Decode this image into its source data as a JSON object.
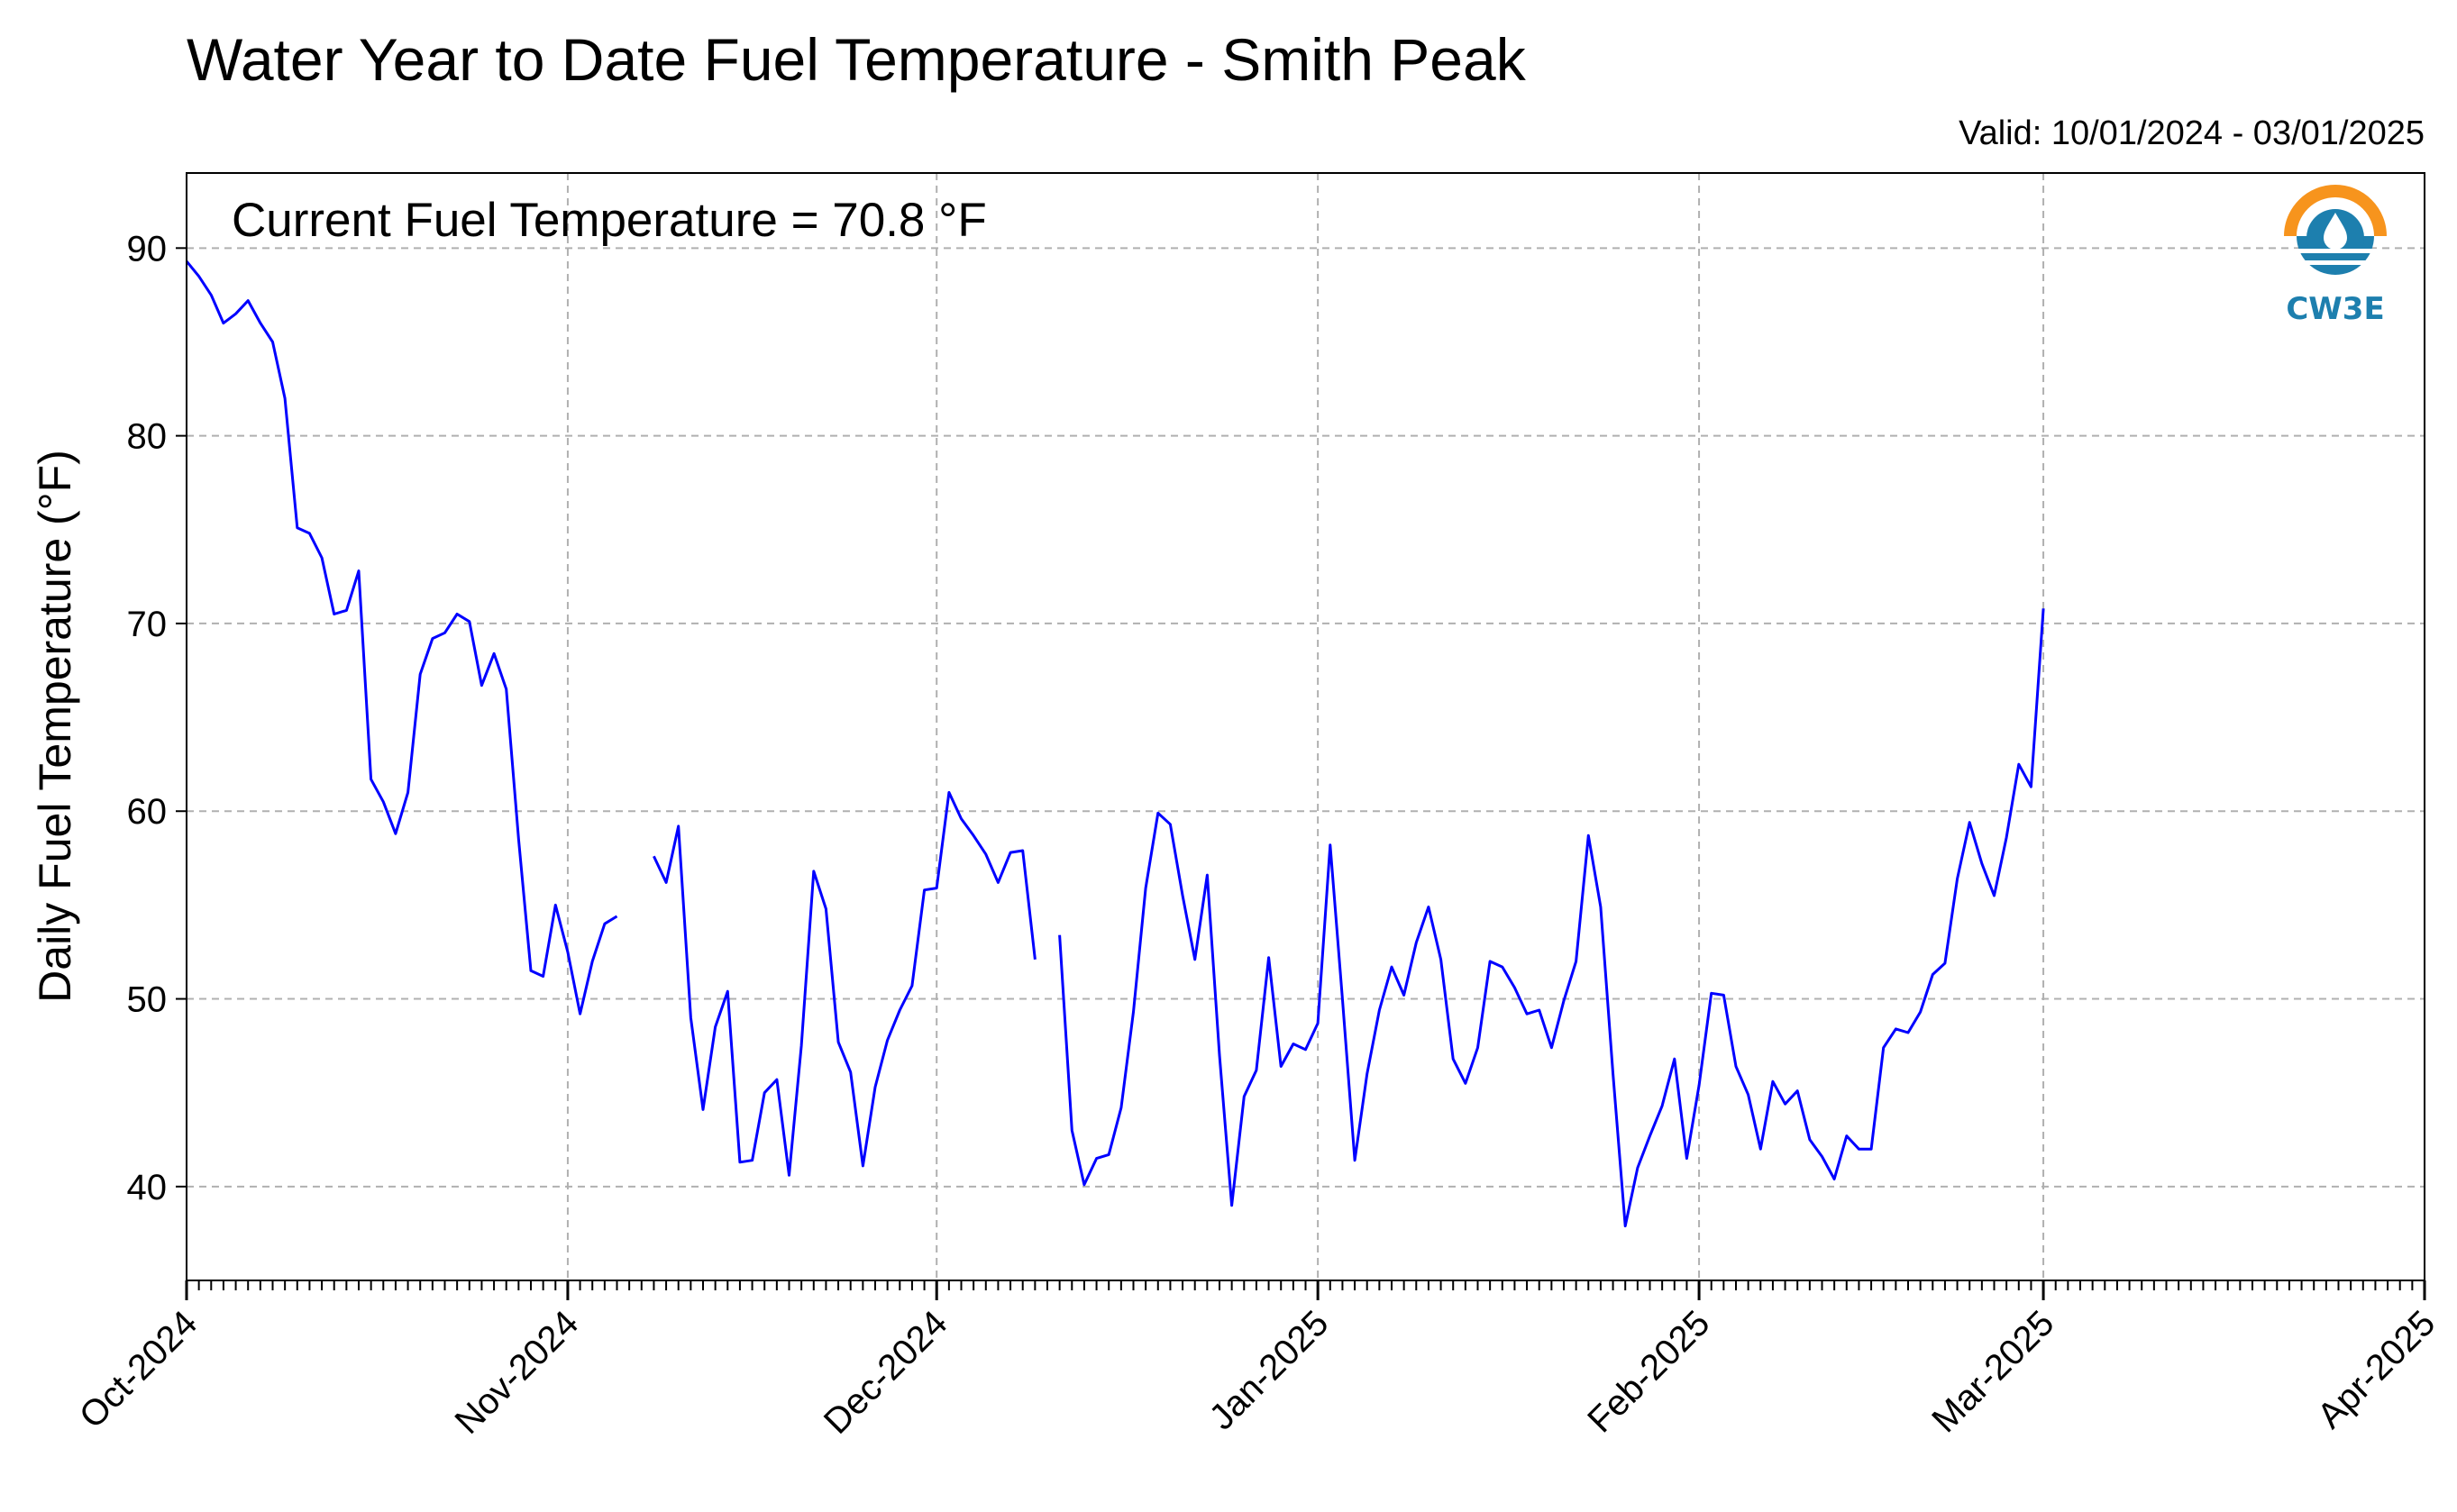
{
  "chart_data": {
    "type": "line",
    "title": "Water Year to Date Fuel Temperature - Smith Peak",
    "valid_text": "Valid: 10/01/2024 - 03/01/2025",
    "annotation": "Current Fuel Temperature = 70.8 °F",
    "ylabel": "Daily Fuel Temperature (°F)",
    "xlabel": "",
    "ylim": [
      35,
      94
    ],
    "yticks": [
      40,
      50,
      60,
      70,
      80,
      90
    ],
    "x_range": [
      "2024-10-01",
      "2025-04-01"
    ],
    "xticks": [
      {
        "date": "2024-10-01",
        "label": "Oct-2024"
      },
      {
        "date": "2024-11-01",
        "label": "Nov-2024"
      },
      {
        "date": "2024-12-01",
        "label": "Dec-2024"
      },
      {
        "date": "2025-01-01",
        "label": "Jan-2025"
      },
      {
        "date": "2025-02-01",
        "label": "Feb-2025"
      },
      {
        "date": "2025-03-01",
        "label": "Mar-2025"
      },
      {
        "date": "2025-04-01",
        "label": "Apr-2025"
      }
    ],
    "grid": true,
    "line_color": "#0000ff",
    "start_date": "2024-10-01",
    "values": [
      89.3,
      88.5,
      87.5,
      86.0,
      86.5,
      87.2,
      86.0,
      85.0,
      82.0,
      75.1,
      74.8,
      73.5,
      70.5,
      70.7,
      72.8,
      61.7,
      60.5,
      58.8,
      61.0,
      67.3,
      69.2,
      69.5,
      70.5,
      70.1,
      66.7,
      68.4,
      66.5,
      58.5,
      51.5,
      51.2,
      55.0,
      52.5,
      49.2,
      52.0,
      54.0,
      54.4,
      null,
      null,
      57.6,
      56.2,
      59.2,
      49.0,
      44.1,
      48.5,
      50.4,
      41.3,
      41.4,
      45.0,
      45.7,
      40.6,
      47.5,
      56.8,
      54.8,
      47.7,
      46.1,
      41.1,
      45.3,
      47.8,
      49.4,
      50.7,
      55.8,
      55.9,
      61.0,
      59.6,
      58.7,
      57.7,
      56.2,
      57.8,
      57.9,
      52.1,
      null,
      53.4,
      43.0,
      40.1,
      41.5,
      41.7,
      44.2,
      49.3,
      55.9,
      59.9,
      59.3,
      55.5,
      52.1,
      56.6,
      47.0,
      39.0,
      44.8,
      46.2,
      52.2,
      46.4,
      47.6,
      47.3,
      48.7,
      58.2,
      50.0,
      41.4,
      46.0,
      49.4,
      51.7,
      50.2,
      53.0,
      54.9,
      52.1,
      46.8,
      45.5,
      47.4,
      52.0,
      51.7,
      50.6,
      49.2,
      49.4,
      47.4,
      49.9,
      52.0,
      58.7,
      54.9,
      46.0,
      37.9,
      41.0,
      42.7,
      44.3,
      46.8,
      41.5,
      45.4,
      50.3,
      50.2,
      46.4,
      44.9,
      42.0,
      45.6,
      44.4,
      45.1,
      42.5,
      41.6,
      40.4,
      42.7,
      42.0,
      42.0,
      47.4,
      48.4,
      48.2,
      49.3,
      51.3,
      51.9,
      56.4,
      59.4,
      57.2,
      55.5,
      58.6,
      62.5,
      61.3,
      70.8
    ]
  },
  "logo": {
    "text": "CW3E",
    "primary_color": "#1d7fae",
    "accent_color": "#f7941d"
  }
}
